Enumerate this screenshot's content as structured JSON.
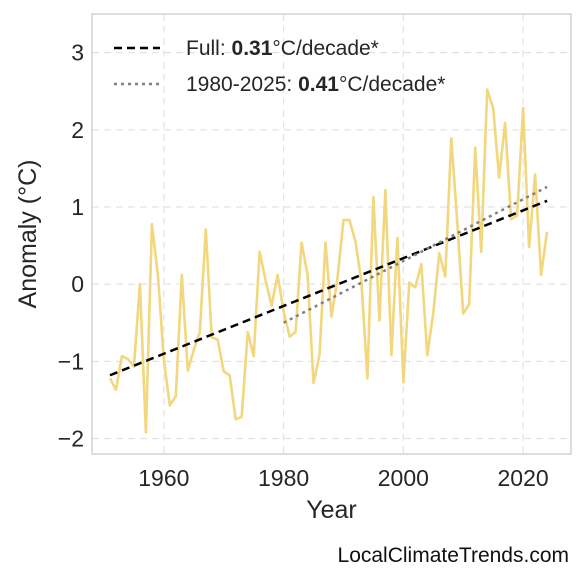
{
  "chart_data": {
    "type": "line",
    "xlabel": "Year",
    "ylabel": "Anomaly (°C)",
    "xlim": [
      1948,
      2028
    ],
    "ylim": [
      -2.2,
      3.5
    ],
    "xticks": [
      1960,
      1980,
      2000,
      2020
    ],
    "yticks": [
      -2,
      -1,
      0,
      1,
      2,
      3
    ],
    "ytick_labels": [
      "−2",
      "−1",
      "0",
      "1",
      "2",
      "3"
    ],
    "grid": true,
    "legend_position": "top-left",
    "series": [
      {
        "color": "#f2d77e",
        "x": [
          1951,
          1952,
          1953,
          1954,
          1955,
          1956,
          1957,
          1958,
          1959,
          1960,
          1961,
          1962,
          1963,
          1964,
          1965,
          1966,
          1967,
          1968,
          1969,
          1970,
          1971,
          1972,
          1973,
          1974,
          1975,
          1976,
          1977,
          1978,
          1979,
          1980,
          1981,
          1982,
          1983,
          1984,
          1985,
          1986,
          1987,
          1988,
          1989,
          1990,
          1991,
          1992,
          1993,
          1994,
          1995,
          1996,
          1997,
          1998,
          1999,
          2000,
          2001,
          2002,
          2003,
          2004,
          2005,
          2006,
          2007,
          2008,
          2009,
          2010,
          2011,
          2012,
          2013,
          2014,
          2015,
          2016,
          2017,
          2018,
          2019,
          2020,
          2021,
          2022,
          2023,
          2024
        ],
        "y": [
          -1.22,
          -1.37,
          -0.93,
          -0.97,
          -1.07,
          0.0,
          -1.92,
          0.78,
          0.12,
          -0.97,
          -1.57,
          -1.45,
          0.12,
          -1.12,
          -0.85,
          -0.62,
          0.71,
          -0.69,
          -0.72,
          -1.13,
          -1.18,
          -1.75,
          -1.72,
          -0.62,
          -0.93,
          0.42,
          0.05,
          -0.28,
          0.12,
          -0.35,
          -0.68,
          -0.62,
          0.54,
          0.12,
          -1.28,
          -0.92,
          0.54,
          -0.42,
          0.08,
          0.83,
          0.83,
          0.55,
          0.04,
          -1.22,
          1.13,
          -0.47,
          1.22,
          -0.92,
          0.6,
          -1.27,
          0.02,
          -0.04,
          0.26,
          -0.92,
          -0.37,
          0.4,
          0.1,
          1.89,
          0.81,
          -0.38,
          -0.26,
          1.77,
          0.42,
          2.52,
          2.28,
          1.38,
          2.09,
          0.84,
          0.89,
          2.28,
          0.48,
          1.42,
          0.12,
          0.68
        ]
      }
    ],
    "trendlines": [
      {
        "label": "Full:",
        "value": "0.31",
        "unit": "°C/decade*",
        "color": "#000000",
        "style": "dashed",
        "x": [
          1951,
          2024
        ],
        "y": [
          -1.18,
          1.08
        ]
      },
      {
        "label": "1980-2025:",
        "value": "0.41",
        "unit": "°C/decade*",
        "color": "#808080",
        "style": "dotted",
        "x": [
          1980,
          2024
        ],
        "y": [
          -0.5,
          1.26
        ]
      }
    ]
  },
  "watermark": "LocalClimateTrends.com"
}
